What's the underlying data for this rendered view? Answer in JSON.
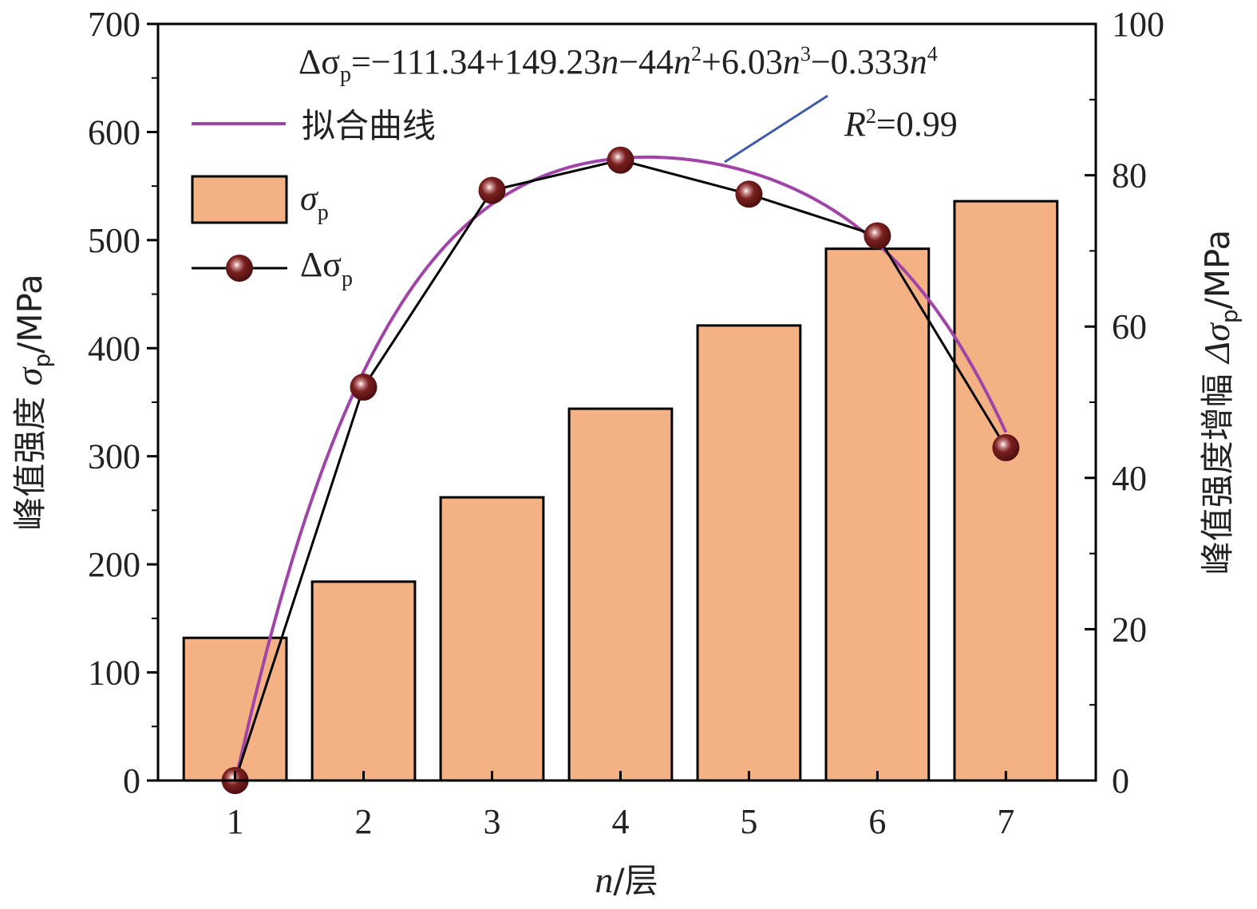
{
  "chart_data": {
    "type": "bar",
    "categories": [
      "1",
      "2",
      "3",
      "4",
      "5",
      "6",
      "7"
    ],
    "x": [
      1,
      2,
      3,
      4,
      5,
      6,
      7
    ],
    "xlabel": {
      "sym": "n",
      "unit": "/层"
    },
    "ylabel_left": {
      "prefix": "峰值强度 ",
      "sym": "σ",
      "sub": "p",
      "unit": "/MPa"
    },
    "ylabel_right": {
      "prefix": "峰值强度增幅 ",
      "sym": "Δσ",
      "sub": "p",
      "unit": "/MPa"
    },
    "ylim_left": [
      0,
      700
    ],
    "yticks_left": [
      0,
      100,
      200,
      300,
      400,
      500,
      600,
      700
    ],
    "ylim_right": [
      0,
      100
    ],
    "yticks_right": [
      0,
      20,
      40,
      60,
      80,
      100
    ],
    "series": [
      {
        "name": "σp",
        "kind": "bar",
        "axis": "left",
        "color": "#F4B183",
        "values": [
          132,
          184,
          262,
          344,
          421,
          492,
          536
        ]
      },
      {
        "name": "Δσp",
        "kind": "line-markers",
        "axis": "right",
        "color": "#000000",
        "marker_color": "#6E1A1A",
        "values": [
          0,
          52,
          78,
          82,
          77.5,
          72,
          44
        ]
      },
      {
        "name": "拟合曲线",
        "kind": "fit-curve",
        "axis": "right",
        "color": "#A044A8",
        "coefficients": [
          -111.34,
          149.23,
          -44,
          6.03,
          -0.333
        ]
      }
    ],
    "annotations": {
      "equation": {
        "lhs_sym": "Δσ",
        "lhs_sub": "p",
        "text_a": "=−111.34+149.23",
        "var_a": "n",
        "text_b": "−44",
        "var_b": "n",
        "exp_b": "2",
        "text_c": "+6.03",
        "var_c": "n",
        "exp_c": "3",
        "text_d": "−0.333",
        "var_d": "n",
        "exp_d": "4"
      },
      "r2": {
        "sym": "R",
        "exp": "2",
        "value": "=0.99"
      }
    },
    "legend": [
      {
        "label": "拟合曲线"
      },
      {
        "sym": "σ",
        "sub": "p"
      },
      {
        "sym": "Δσ",
        "sub": "p"
      }
    ],
    "colors": {
      "bar_fill": "#F4B183",
      "fit_curve": "#A044A8",
      "marker": "#6E1A1A",
      "pointer_line": "#3F5BA8"
    },
    "grid": false,
    "legend_position": "top-left"
  }
}
